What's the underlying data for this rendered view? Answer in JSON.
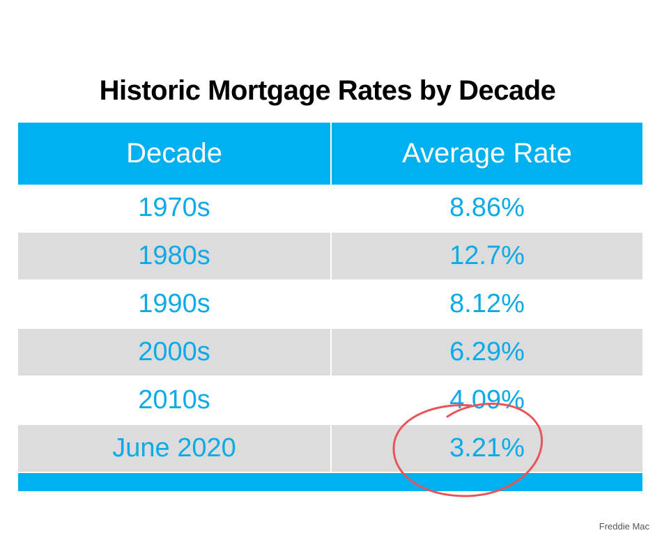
{
  "title": "Historic Mortgage Rates by Decade",
  "source": "Freddie Mac",
  "colors": {
    "header_bg": "#00b0ef",
    "text_blue": "#0aaae8",
    "stripe_gray": "#dcdcdc",
    "circle_red": "#e8545a"
  },
  "chart_data": {
    "type": "table",
    "title": "Historic Mortgage Rates by Decade",
    "columns": [
      "Decade",
      "Average Rate"
    ],
    "rows": [
      {
        "decade": "1970s",
        "rate": "8.86%"
      },
      {
        "decade": "1980s",
        "rate": "12.7%"
      },
      {
        "decade": "1990s",
        "rate": "8.12%"
      },
      {
        "decade": "2000s",
        "rate": "6.29%"
      },
      {
        "decade": "2010s",
        "rate": "4.09%"
      },
      {
        "decade": "June 2020",
        "rate": "3.21%"
      }
    ],
    "annotations": [
      {
        "type": "hand-drawn-circle",
        "target": "3.21%",
        "color": "#e8545a"
      }
    ]
  }
}
